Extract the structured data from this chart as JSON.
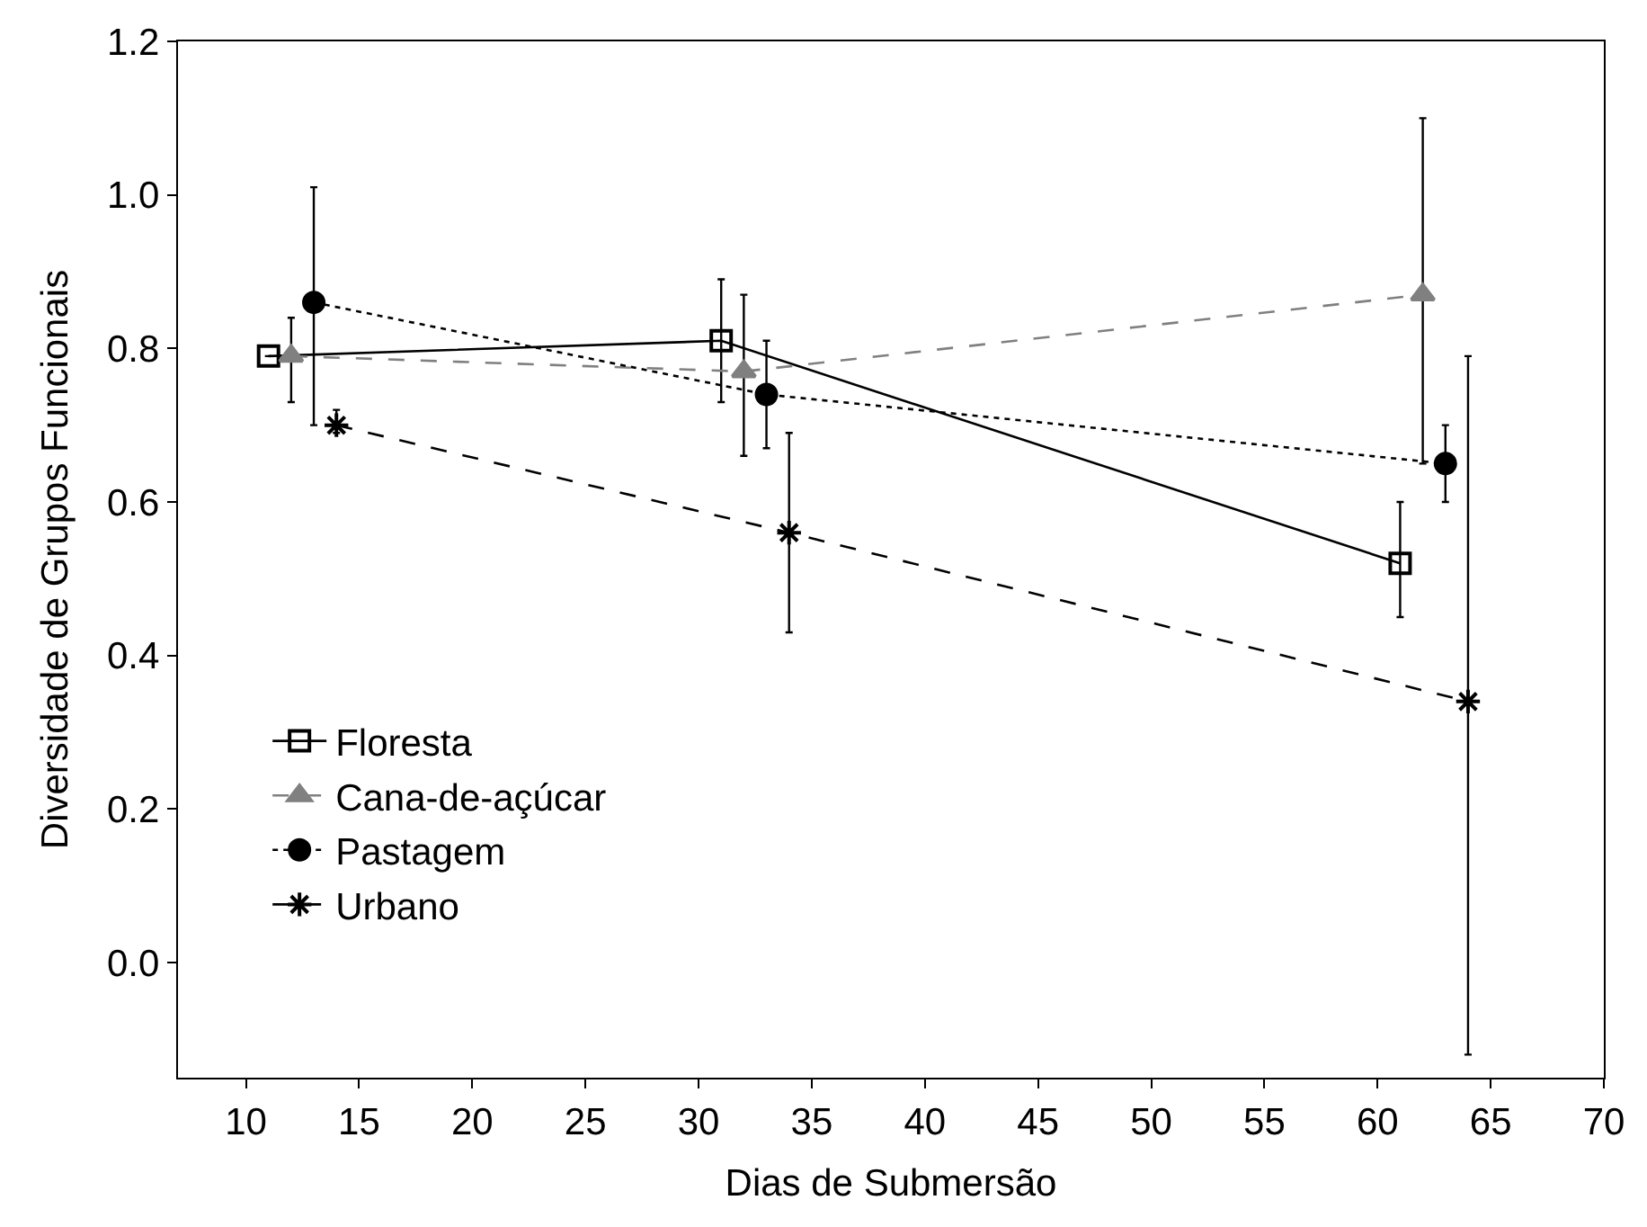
{
  "chart_data": {
    "type": "line",
    "xlabel": "Dias de Submersão",
    "ylabel": "Diversidade de Grupos Funcionais",
    "xlim": [
      7,
      70
    ],
    "xticks": [
      10,
      15,
      20,
      25,
      30,
      35,
      40,
      45,
      50,
      55,
      60,
      65,
      70
    ],
    "ylim": [
      -0.15,
      1.2
    ],
    "yticks": [
      {
        "value": 0,
        "label": "0.0"
      },
      0.2,
      0.4,
      0.6,
      0.8,
      {
        "value": 1,
        "label": "1.0"
      },
      1.2
    ],
    "legend": "bottom left",
    "series": [
      {
        "name": "Floresta",
        "color": "#000000",
        "marker": "square",
        "line_style": "solid",
        "x": [
          11,
          31,
          61
        ],
        "values": [
          0.79,
          0.81,
          0.52
        ],
        "errors": [
          null,
          [
            0.73,
            0.89
          ],
          [
            0.45,
            0.6
          ]
        ]
      },
      {
        "name": "Cana-de-açúcar",
        "color": "#808080",
        "marker": "triangle",
        "line_style": "dashed",
        "x": [
          12,
          32,
          62
        ],
        "values": [
          0.79,
          0.77,
          0.87
        ],
        "errors": [
          [
            0.73,
            0.84
          ],
          [
            0.66,
            0.87
          ],
          [
            0.65,
            1.1
          ]
        ]
      },
      {
        "name": "Pastagem",
        "color": "#000000",
        "marker": "circle",
        "line_style": "dotted",
        "x": [
          13,
          33,
          63
        ],
        "values": [
          0.86,
          0.74,
          0.65
        ],
        "errors": [
          [
            0.7,
            1.01
          ],
          [
            0.67,
            0.81
          ],
          [
            0.6,
            0.7
          ]
        ]
      },
      {
        "name": "Urbano",
        "color": "#000000",
        "marker": "cross",
        "line_style": "dashed",
        "x": [
          14,
          34,
          64
        ],
        "values": [
          0.7,
          0.56,
          0.34
        ],
        "errors": [
          [
            0.69,
            0.72
          ],
          [
            0.43,
            0.69
          ],
          [
            -0.12,
            0.79
          ]
        ]
      }
    ]
  }
}
